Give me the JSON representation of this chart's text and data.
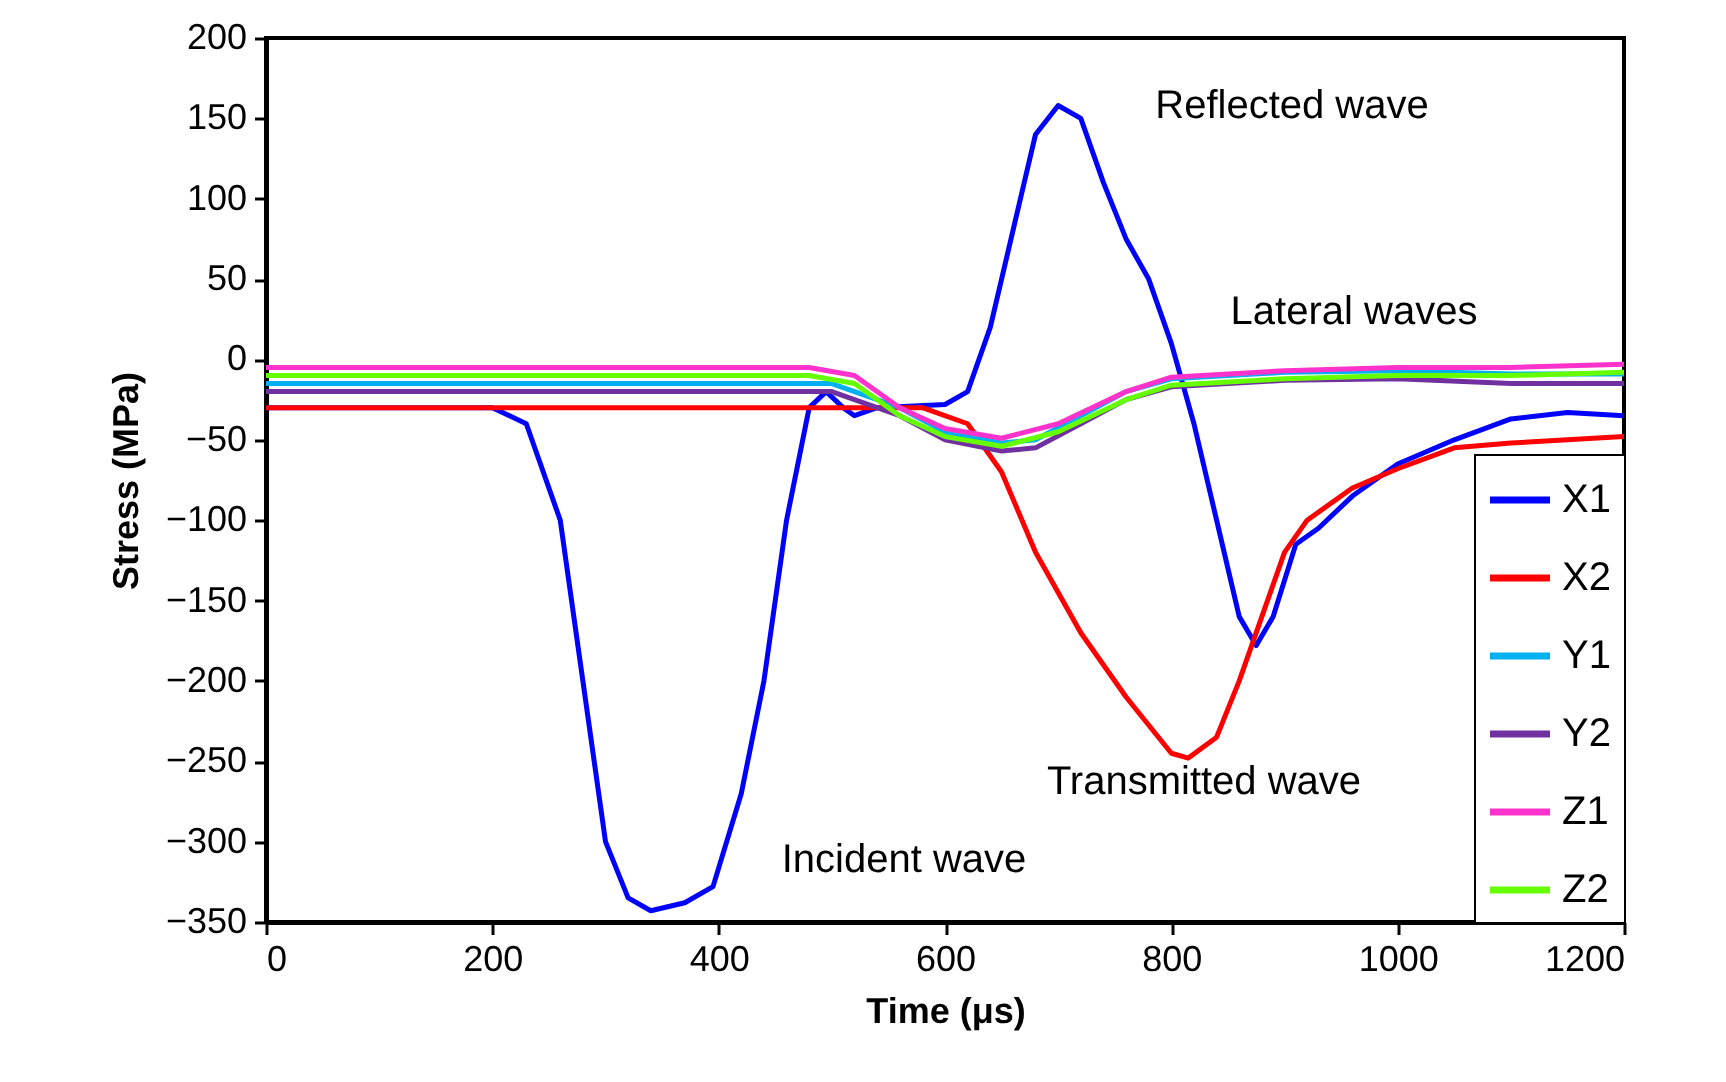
{
  "chart_data": {
    "type": "line",
    "xlabel": "Time (μs)",
    "ylabel": "Stress (MPa)",
    "xlim": [
      0,
      1200
    ],
    "ylim": [
      -350,
      200
    ],
    "xticks": [
      0,
      200,
      400,
      600,
      800,
      1000,
      1200
    ],
    "yticks": [
      -350,
      -300,
      -250,
      -200,
      -150,
      -100,
      -50,
      0,
      50,
      100,
      150,
      200
    ],
    "grid": false,
    "legend": "bottom right",
    "line_style": "solid",
    "marker": "none",
    "annotations": [
      "Reflected wave",
      "Lateral waves",
      "Transmitted wave",
      "Incident wave"
    ],
    "series": [
      {
        "name": "X1",
        "color": "#0000ff",
        "x": [
          0,
          200,
          230,
          260,
          280,
          300,
          320,
          340,
          370,
          395,
          420,
          440,
          460,
          480,
          495,
          510,
          520,
          540,
          600,
          620,
          640,
          660,
          680,
          700,
          720,
          740,
          760,
          780,
          800,
          820,
          840,
          860,
          875,
          890,
          910,
          930,
          960,
          1000,
          1050,
          1100,
          1150,
          1200
        ],
        "values": [
          -30,
          -30,
          -40,
          -100,
          -200,
          -300,
          -335,
          -343,
          -338,
          -328,
          -270,
          -200,
          -100,
          -30,
          -20,
          -30,
          -35,
          -30,
          -28,
          -20,
          20,
          80,
          140,
          158,
          150,
          110,
          75,
          50,
          10,
          -40,
          -100,
          -160,
          -178,
          -160,
          -115,
          -105,
          -85,
          -65,
          -50,
          -37,
          -33,
          -35
        ]
      },
      {
        "name": "X2",
        "color": "#ff0000",
        "x": [
          0,
          540,
          580,
          620,
          650,
          680,
          700,
          720,
          760,
          800,
          815,
          840,
          860,
          880,
          900,
          920,
          960,
          1000,
          1050,
          1100,
          1150,
          1200
        ],
        "values": [
          -30,
          -30,
          -30,
          -40,
          -70,
          -120,
          -145,
          -170,
          -210,
          -245,
          -248,
          -235,
          -200,
          -160,
          -120,
          -100,
          -80,
          -68,
          -55,
          -52,
          -50,
          -48
        ]
      },
      {
        "name": "Y1",
        "color": "#00b0f0",
        "x": [
          0,
          500,
          560,
          600,
          650,
          680,
          720,
          760,
          800,
          900,
          1000,
          1100,
          1200
        ],
        "values": [
          -15,
          -15,
          -30,
          -45,
          -52,
          -50,
          -35,
          -20,
          -12,
          -8,
          -7,
          -9,
          -9
        ]
      },
      {
        "name": "Y2",
        "color": "#7030a0",
        "x": [
          0,
          500,
          560,
          600,
          650,
          680,
          720,
          760,
          800,
          900,
          1000,
          1100,
          1200
        ],
        "values": [
          -20,
          -20,
          -35,
          -50,
          -57,
          -55,
          -40,
          -25,
          -17,
          -13,
          -12,
          -15,
          -15
        ]
      },
      {
        "name": "Z1",
        "color": "#ff33cc",
        "x": [
          0,
          480,
          520,
          560,
          600,
          650,
          700,
          760,
          800,
          900,
          1000,
          1100,
          1200
        ],
        "values": [
          -5,
          -5,
          -10,
          -30,
          -43,
          -49,
          -40,
          -20,
          -11,
          -7,
          -5,
          -5,
          -3
        ]
      },
      {
        "name": "Z2",
        "color": "#66ff00",
        "x": [
          0,
          480,
          520,
          560,
          600,
          650,
          700,
          760,
          800,
          900,
          1000,
          1100,
          1200
        ],
        "values": [
          -10,
          -10,
          -15,
          -35,
          -48,
          -54,
          -45,
          -25,
          -16,
          -12,
          -10,
          -10,
          -8
        ]
      }
    ]
  }
}
